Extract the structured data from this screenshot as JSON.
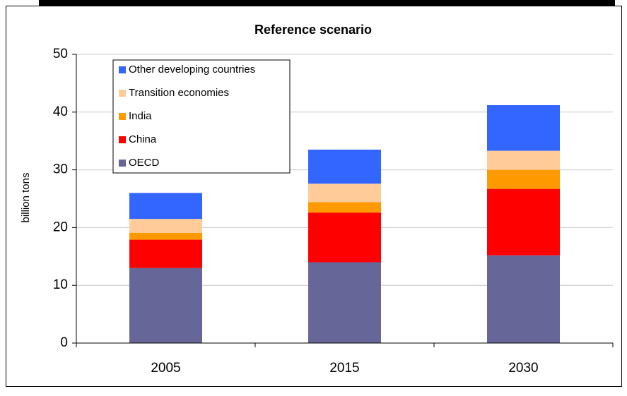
{
  "chart_data": {
    "type": "stacked-bar",
    "title": "Reference scenario",
    "y_label": "billion tons",
    "categories": [
      "2005",
      "2015",
      "2030"
    ],
    "series": [
      {
        "name": "OECD",
        "color": "#666699",
        "values": [
          13,
          14,
          15.2
        ]
      },
      {
        "name": "China",
        "color": "#ff0000",
        "values": [
          4.9,
          8.6,
          11.5
        ]
      },
      {
        "name": "India",
        "color": "#ff9900",
        "values": [
          1.2,
          1.8,
          3.3
        ]
      },
      {
        "name": "Transition economies",
        "color": "#ffcc99",
        "values": [
          2.4,
          3.2,
          3.3
        ]
      },
      {
        "name": "Other developing countries",
        "color": "#3366ff",
        "values": [
          4.5,
          5.9,
          7.9
        ]
      }
    ],
    "ylim": [
      0,
      50
    ],
    "yticks": [
      0,
      10,
      20,
      30,
      40,
      50
    ],
    "grid": true,
    "legend": "upper left"
  }
}
